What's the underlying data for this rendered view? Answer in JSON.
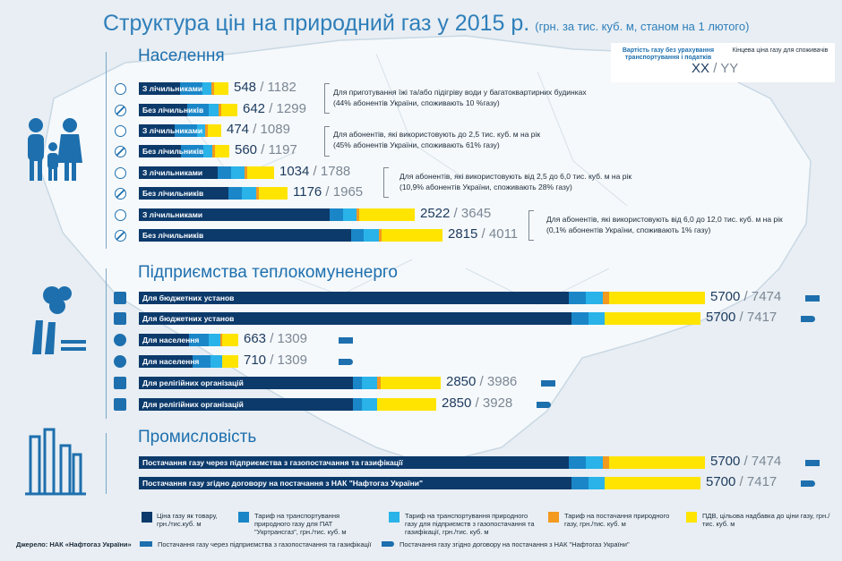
{
  "title": "Структура цін на природний газ у 2015 р.",
  "subtitle": "(грн. за тис. куб. м,  станом на 1 лютого)",
  "colors": {
    "gas": "#0c3a6b",
    "ukrtransgaz": "#1a86c8",
    "distribution": "#29b3e8",
    "supply": "#f39a1f",
    "vat": "#ffe400",
    "title": "#2f7fba"
  },
  "key": {
    "col1": "Вартість газу без урахування транспортування і податків",
    "col2": "Кінцева ціна газу для споживачів",
    "sample_a": "XX",
    "sample_sep": "/",
    "sample_b": "YY"
  },
  "sections": [
    {
      "title": "Населення"
    },
    {
      "title": "Підприємства теплокомуненерго"
    },
    {
      "title": "Промисловість"
    }
  ],
  "notes": [
    {
      "line1": "Для приготування їжі та/або підігріву води у багатоквартирних будинках",
      "line2": "(44% абонентів України, споживають 10 %газу)"
    },
    {
      "line1": "Для абонентів, які використовують до 2,5 тис. куб. м на рік",
      "line2": "(45% абонентів України, споживають 61% газу)"
    },
    {
      "line1": "Для абонентів, які використовують від 2,5 до 6,0 тис. куб. м на рік",
      "line2": "(10,9% абонентів України, споживають 28% газу)"
    },
    {
      "line1": "Для абонентів, які використовують від 6,0 до 12,0 тис. куб. м на рік",
      "line2": "(0,1% абонентів України, споживають 1% газу)"
    }
  ],
  "chart_data": {
    "type": "bar",
    "orientation": "horizontal",
    "stacked": true,
    "title": "Структура цін на природний газ у 2015 р.",
    "subtitle": "(грн. за тис. куб. м,  станом на 1 лютого)",
    "components": [
      "Ціна газу як товару, грн./тис.куб. м",
      "Тариф на транспортування природного газу для ПАТ \"Укртрансгаз\", грн./тис. куб. м",
      "Тариф на транспортування природного газу для підприємств з газопостачання та газифікації, грн./тис. куб. м",
      "Тариф на постачання природного газу, грн./тис. куб. м",
      "ПДВ, цільова надбавка до ціни газу, грн./тис. куб. м"
    ],
    "rows": [
      {
        "label": "З лічильниками",
        "group": "Населення",
        "gas": 548,
        "final": 1182,
        "parts": [
          0.46,
          0.25,
          0.1,
          0.03,
          0.16
        ]
      },
      {
        "label": "Без лічильників",
        "group": "Населення",
        "gas": 642,
        "final": 1299,
        "parts": [
          0.49,
          0.22,
          0.1,
          0.03,
          0.16
        ]
      },
      {
        "label": "З лічильниками",
        "group": "Населення",
        "gas": 474,
        "final": 1089,
        "parts": [
          0.44,
          0.27,
          0.1,
          0.03,
          0.16
        ]
      },
      {
        "label": "Без лічильників",
        "group": "Населення",
        "gas": 560,
        "final": 1197,
        "parts": [
          0.47,
          0.24,
          0.1,
          0.03,
          0.16
        ]
      },
      {
        "label": "З лічильниками",
        "group": "Населення",
        "gas": 1034,
        "final": 1788,
        "parts": [
          0.58,
          0.1,
          0.1,
          0.02,
          0.2
        ]
      },
      {
        "label": "Без лічильників",
        "group": "Населення",
        "gas": 1176,
        "final": 1965,
        "parts": [
          0.6,
          0.09,
          0.1,
          0.02,
          0.19
        ]
      },
      {
        "label": "З лічильниками",
        "group": "Населення",
        "gas": 2522,
        "final": 3645,
        "parts": [
          0.69,
          0.05,
          0.05,
          0.01,
          0.2
        ]
      },
      {
        "label": "Без лічильників",
        "group": "Населення",
        "gas": 2815,
        "final": 4011,
        "parts": [
          0.7,
          0.04,
          0.05,
          0.01,
          0.2
        ]
      },
      {
        "label": "Для бюджетних установ",
        "group": "Підприємства теплокомуненерго",
        "gas": 5700,
        "final": 7474,
        "parts": [
          0.76,
          0.03,
          0.03,
          0.01,
          0.17
        ]
      },
      {
        "label": "Для бюджетних установ",
        "group": "Підприємства теплокомуненерго",
        "gas": 5700,
        "final": 7417,
        "parts": [
          0.77,
          0.03,
          0.03,
          0.0,
          0.17
        ]
      },
      {
        "label": "Для населення",
        "group": "Підприємства теплокомуненерго",
        "gas": 663,
        "final": 1309,
        "parts": [
          0.5,
          0.2,
          0.12,
          0.02,
          0.16
        ]
      },
      {
        "label": "Для населення",
        "group": "Підприємства теплокомуненерго",
        "gas": 710,
        "final": 1309,
        "parts": [
          0.54,
          0.18,
          0.12,
          0.0,
          0.16
        ]
      },
      {
        "label": "Для релігійних організацій",
        "group": "Підприємства теплокомуненерго",
        "gas": 2850,
        "final": 3986,
        "parts": [
          0.71,
          0.03,
          0.05,
          0.01,
          0.2
        ]
      },
      {
        "label": "Для релігійних організацій",
        "group": "Підприємства теплокомуненерго",
        "gas": 2850,
        "final": 3928,
        "parts": [
          0.72,
          0.03,
          0.05,
          0.0,
          0.2
        ]
      },
      {
        "label": "Постачання газу через підприємства з газопостачання та газифікації",
        "group": "Промисловість",
        "gas": 5700,
        "final": 7474,
        "parts": [
          0.76,
          0.03,
          0.03,
          0.01,
          0.17
        ]
      },
      {
        "label": "Постачання газу згідно договору на постачання з НАК \"Нафтогаз України\"",
        "group": "Промисловість",
        "gas": 5700,
        "final": 7417,
        "parts": [
          0.77,
          0.03,
          0.03,
          0.0,
          0.17
        ]
      }
    ]
  },
  "legend": [
    {
      "text": "Ціна газу як товару, грн./тис.куб. м",
      "color": "#0c3a6b"
    },
    {
      "text": "Тариф на транспортування природного газу для ПАТ \"Укртрансгаз\", грн./тис. куб. м",
      "color": "#1a86c8"
    },
    {
      "text": "Тариф на транспортування природного газу для підприємств з газопостачання та газифікації, грн./тис. куб. м",
      "color": "#29b3e8"
    },
    {
      "text": "Тариф на постачання природного газу, грн./тис. куб. м",
      "color": "#f39a1f"
    },
    {
      "text": "ПДВ, цільова надбавка до ціни газу, грн./тис. куб. м",
      "color": "#ffe400"
    }
  ],
  "legend2": [
    {
      "text": "Постачання газу через підприємства з газопостачання та газифікації"
    },
    {
      "text": "Постачання газу згідно договору на постачання з НАК \"Нафтогаз України\""
    }
  ],
  "source": "Джерело: НАК «Нафтогаз України»"
}
